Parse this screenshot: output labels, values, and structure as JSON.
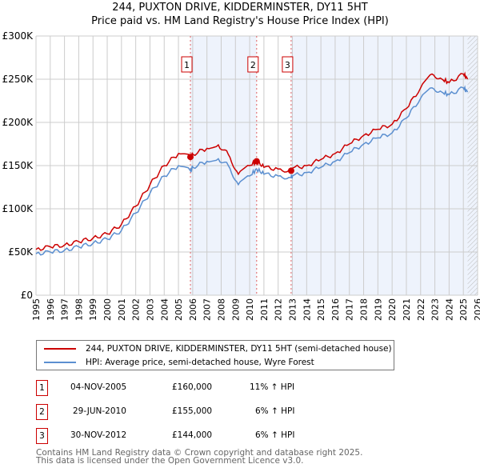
{
  "title": "244, PUXTON DRIVE, KIDDERMINSTER, DY11 5HT",
  "subtitle": "Price paid vs. HM Land Registry's House Price Index (HPI)",
  "chart_data": {
    "type": "line",
    "title": "244, PUXTON DRIVE, KIDDERMINSTER, DY11 5HT",
    "ylim": [
      0,
      300000
    ],
    "xlim": [
      1995,
      2026
    ],
    "yticks": [
      {
        "v": 0,
        "label": "£0"
      },
      {
        "v": 50000,
        "label": "£50K"
      },
      {
        "v": 100000,
        "label": "£100K"
      },
      {
        "v": 150000,
        "label": "£150K"
      },
      {
        "v": 200000,
        "label": "£200K"
      },
      {
        "v": 250000,
        "label": "£250K"
      },
      {
        "v": 300000,
        "label": "£300K"
      }
    ],
    "xticks": [
      "1995",
      "1996",
      "1997",
      "1998",
      "1999",
      "2000",
      "2001",
      "2002",
      "2003",
      "2004",
      "2005",
      "2006",
      "2007",
      "2008",
      "2009",
      "2010",
      "2011",
      "2012",
      "2013",
      "2014",
      "2015",
      "2016",
      "2017",
      "2018",
      "2019",
      "2020",
      "2021",
      "2022",
      "2023",
      "2024",
      "2025",
      "2026"
    ],
    "series": [
      {
        "name": "244, PUXTON DRIVE, KIDDERMINSTER, DY11 5HT (semi-detached house)",
        "color": "#cc0000",
        "x": [
          1995,
          1996,
          1997,
          1998,
          1999,
          2000,
          2001,
          2002,
          2003,
          2004,
          2005,
          2005.84,
          2006,
          2007,
          2007.8,
          2008.5,
          2009.2,
          2010,
          2010.49,
          2011,
          2012,
          2012.91,
          2013,
          2014,
          2015,
          2016,
          2017,
          2018,
          2019,
          2020,
          2021,
          2022,
          2022.8,
          2023.5,
          2024,
          2025,
          2025.3
        ],
        "y": [
          53000,
          56000,
          58000,
          62000,
          66000,
          71000,
          82000,
          103000,
          128000,
          150000,
          164000,
          160000,
          163000,
          170000,
          174000,
          163000,
          140000,
          150000,
          155000,
          148000,
          146000,
          144000,
          147000,
          150000,
          157000,
          164000,
          175000,
          185000,
          192000,
          198000,
          216000,
          240000,
          256000,
          250000,
          246000,
          256000,
          250000
        ]
      },
      {
        "name": "HPI: Average price, semi-detached house, Wyre Forest",
        "color": "#5b8fd0",
        "x": [
          1995,
          1996,
          1997,
          1998,
          1999,
          2000,
          2001,
          2002,
          2003,
          2004,
          2005,
          2005.84,
          2006,
          2007,
          2007.8,
          2008.5,
          2009.2,
          2010,
          2010.49,
          2011,
          2012,
          2012.91,
          2013,
          2014,
          2015,
          2016,
          2017,
          2018,
          2019,
          2020,
          2021,
          2022,
          2022.8,
          2023.5,
          2024,
          2025,
          2025.3
        ],
        "y": [
          48000,
          50000,
          52000,
          56000,
          60000,
          65000,
          75000,
          95000,
          118000,
          138000,
          150000,
          144000,
          148000,
          155000,
          158000,
          150000,
          128000,
          138000,
          146000,
          140000,
          138000,
          136000,
          138000,
          142000,
          148000,
          155000,
          165000,
          175000,
          182000,
          188000,
          205000,
          228000,
          240000,
          235000,
          232000,
          240000,
          235000
        ]
      }
    ],
    "sales": [
      {
        "label": "1",
        "x": 2005.84,
        "y": 160000
      },
      {
        "label": "2",
        "x": 2010.49,
        "y": 155000
      },
      {
        "label": "3",
        "x": 2012.91,
        "y": 144000
      }
    ],
    "shaded": [
      [
        2005.84,
        2010.49
      ],
      [
        2012.91,
        2026
      ]
    ],
    "hatched_from": 2025.3
  },
  "legend": [
    "244, PUXTON DRIVE, KIDDERMINSTER, DY11 5HT (semi-detached house)",
    "HPI: Average price, semi-detached house, Wyre Forest"
  ],
  "transactions": [
    {
      "n": "1",
      "date": "04-NOV-2005",
      "price": "£160,000",
      "hpi": "11% ↑ HPI"
    },
    {
      "n": "2",
      "date": "29-JUN-2010",
      "price": "£155,000",
      "hpi": "6% ↑ HPI"
    },
    {
      "n": "3",
      "date": "30-NOV-2012",
      "price": "£144,000",
      "hpi": "6% ↑ HPI"
    }
  ],
  "footer": [
    "Contains HM Land Registry data © Crown copyright and database right 2025.",
    "This data is licensed under the Open Government Licence v3.0."
  ]
}
